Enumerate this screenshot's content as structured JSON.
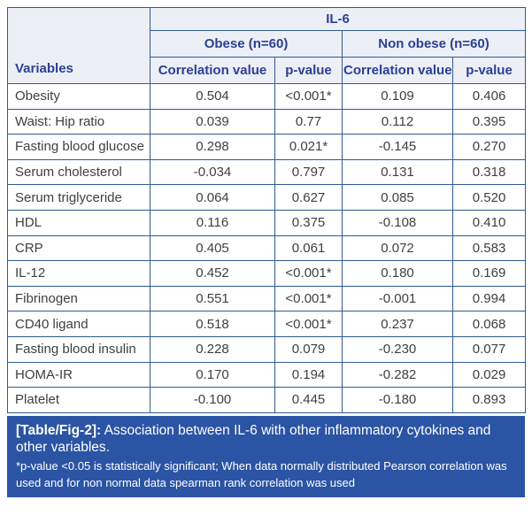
{
  "colors": {
    "border_blue": "#2f5b94",
    "header_background": "#edeff6",
    "header_text_blue": "#2b3f94",
    "body_text_gray": "#3f3f3f",
    "caption_background_blue": "#2b54a4",
    "caption_text_white": "#ffffff"
  },
  "table": {
    "span_title": "IL-6",
    "variables_header": "Variables",
    "group_headers": [
      "Obese (n=60)",
      "Non obese (n=60)"
    ],
    "sub_headers": [
      "Correlation value",
      "p-value",
      "Correlation value",
      "p-value"
    ],
    "rows": [
      {
        "variable": "Obesity",
        "values": [
          "0.504",
          "<0.001*",
          "0.109",
          "0.406"
        ]
      },
      {
        "variable": "Waist: Hip ratio",
        "values": [
          "0.039",
          "0.77",
          "0.112",
          "0.395"
        ]
      },
      {
        "variable": "Fasting blood glucose",
        "values": [
          "0.298",
          "0.021*",
          "-0.145",
          "0.270"
        ]
      },
      {
        "variable": "Serum cholesterol",
        "values": [
          "-0.034",
          "0.797",
          "0.131",
          "0.318"
        ]
      },
      {
        "variable": "Serum triglyceride",
        "values": [
          "0.064",
          "0.627",
          "0.085",
          "0.520"
        ]
      },
      {
        "variable": "HDL",
        "values": [
          "0.116",
          "0.375",
          "-0.108",
          "0.410"
        ]
      },
      {
        "variable": "CRP",
        "values": [
          "0.405",
          "0.061",
          "0.072",
          "0.583"
        ]
      },
      {
        "variable": "IL-12",
        "values": [
          "0.452",
          "<0.001*",
          "0.180",
          "0.169"
        ]
      },
      {
        "variable": "Fibrinogen",
        "values": [
          "0.551",
          "<0.001*",
          "-0.001",
          "0.994"
        ]
      },
      {
        "variable": "CD40 ligand",
        "values": [
          "0.518",
          "<0.001*",
          "0.237",
          "0.068"
        ]
      },
      {
        "variable": "Fasting blood insulin",
        "values": [
          "0.228",
          "0.079",
          "-0.230",
          "0.077"
        ]
      },
      {
        "variable": "HOMA-IR",
        "values": [
          "0.170",
          "0.194",
          "-0.282",
          "0.029"
        ]
      },
      {
        "variable": "Platelet",
        "values": [
          "-0.100",
          "0.445",
          "-0.180",
          "0.893"
        ]
      }
    ]
  },
  "caption": {
    "label": "[Table/Fig-2]:",
    "text": "Association between IL-6 with other inflammatory cytokines and other variables.",
    "footnote": "*p-value <0.05 is statistically significant; When data normally distributed Pearson correlation was used and for non normal data spearman rank correlation was used"
  }
}
